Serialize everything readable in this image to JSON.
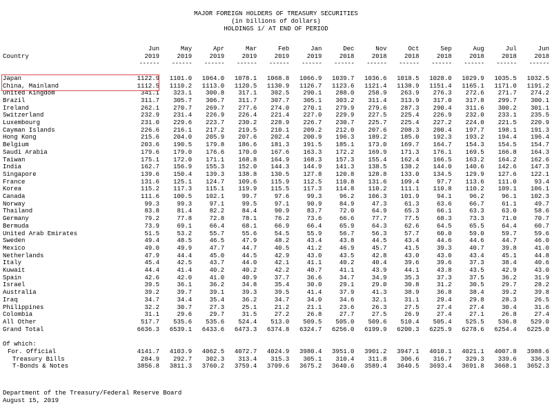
{
  "title": "MAJOR FOREIGN HOLDERS OF TREASURY SECURITIES",
  "subtitle": "(in billions of dollars)",
  "subtitle2": "HOLDINGS 1/ AT END OF PERIOD",
  "country_header": "Country",
  "dash": "------",
  "months": [
    {
      "m": "Jun",
      "y": "2019"
    },
    {
      "m": "May",
      "y": "2019"
    },
    {
      "m": "Apr",
      "y": "2019"
    },
    {
      "m": "Mar",
      "y": "2019"
    },
    {
      "m": "Feb",
      "y": "2019"
    },
    {
      "m": "Jan",
      "y": "2019"
    },
    {
      "m": "Dec",
      "y": "2018"
    },
    {
      "m": "Nov",
      "y": "2018"
    },
    {
      "m": "Oct",
      "y": "2018"
    },
    {
      "m": "Sep",
      "y": "2018"
    },
    {
      "m": "Aug",
      "y": "2018"
    },
    {
      "m": "Jul",
      "y": "2018"
    },
    {
      "m": "Jun",
      "y": "2018"
    }
  ],
  "rows": [
    {
      "name": "Japan",
      "v": [
        "1122.9",
        "1101.0",
        "1064.0",
        "1078.1",
        "1068.8",
        "1066.9",
        "1039.7",
        "1036.6",
        "1018.5",
        "1028.0",
        "1029.9",
        "1035.5",
        "1032.5"
      ]
    },
    {
      "name": "China, Mainland",
      "v": [
        "1112.5",
        "1110.2",
        "1113.0",
        "1120.5",
        "1130.9",
        "1126.7",
        "1123.6",
        "1121.4",
        "1138.9",
        "1151.4",
        "1165.1",
        "1171.0",
        "1191.2"
      ]
    },
    {
      "name": "United Kingdom",
      "v": [
        "341.1",
        "323.1",
        "300.8",
        "317.1",
        "302.5",
        "290.1",
        "288.0",
        "258.9",
        "263.9",
        "276.3",
        "272.6",
        "271.7",
        "274.2"
      ]
    },
    {
      "name": "Brazil",
      "v": [
        "311.7",
        "305.7",
        "306.7",
        "311.7",
        "307.7",
        "305.1",
        "303.2",
        "311.4",
        "313.9",
        "317.0",
        "317.8",
        "299.7",
        "300.1"
      ]
    },
    {
      "name": "Ireland",
      "v": [
        "262.1",
        "270.7",
        "269.7",
        "277.6",
        "274.0",
        "270.1",
        "279.9",
        "279.6",
        "287.3",
        "290.4",
        "311.6",
        "300.2",
        "301.1"
      ]
    },
    {
      "name": "Switzerland",
      "v": [
        "232.9",
        "231.4",
        "226.9",
        "226.4",
        "221.4",
        "227.0",
        "229.9",
        "227.5",
        "225.4",
        "226.9",
        "232.0",
        "233.1",
        "235.5"
      ]
    },
    {
      "name": "Luxembourg",
      "v": [
        "231.0",
        "229.6",
        "223.7",
        "230.2",
        "228.9",
        "226.7",
        "230.7",
        "225.7",
        "225.4",
        "227.2",
        "224.0",
        "221.5",
        "220.9"
      ]
    },
    {
      "name": "Cayman Islands",
      "v": [
        "226.6",
        "216.1",
        "217.2",
        "219.5",
        "210.1",
        "209.2",
        "212.0",
        "207.6",
        "208.3",
        "200.4",
        "197.7",
        "198.1",
        "191.3"
      ]
    },
    {
      "name": "Hong Kong",
      "v": [
        "215.6",
        "204.0",
        "205.9",
        "207.6",
        "202.4",
        "200.9",
        "196.3",
        "189.2",
        "185.0",
        "192.3",
        "193.2",
        "194.4",
        "196.4"
      ]
    },
    {
      "name": "Belgium",
      "v": [
        "203.6",
        "190.5",
        "179.8",
        "186.6",
        "181.3",
        "191.5",
        "185.1",
        "173.0",
        "169.7",
        "164.7",
        "154.3",
        "154.5",
        "154.7"
      ]
    },
    {
      "name": "Saudi Arabia",
      "v": [
        "179.6",
        "179.0",
        "176.6",
        "170.0",
        "167.6",
        "163.3",
        "172.2",
        "169.9",
        "171.3",
        "176.1",
        "169.5",
        "166.8",
        "164.3"
      ]
    },
    {
      "name": "Taiwan",
      "v": [
        "175.1",
        "172.0",
        "171.1",
        "168.8",
        "164.9",
        "168.3",
        "157.3",
        "155.4",
        "162.4",
        "166.5",
        "163.2",
        "164.2",
        "162.6"
      ]
    },
    {
      "name": "India",
      "v": [
        "162.7",
        "156.9",
        "155.3",
        "152.0",
        "144.3",
        "144.9",
        "141.3",
        "138.5",
        "138.2",
        "144.0",
        "140.6",
        "142.6",
        "147.3"
      ]
    },
    {
      "name": "Singapore",
      "v": [
        "139.6",
        "150.4",
        "139.3",
        "138.8",
        "130.5",
        "127.8",
        "120.8",
        "128.8",
        "133.0",
        "134.5",
        "129.9",
        "127.6",
        "122.1"
      ]
    },
    {
      "name": "France",
      "v": [
        "131.6",
        "125.1",
        "124.7",
        "109.6",
        "115.9",
        "112.5",
        "110.8",
        "131.6",
        "109.4",
        "97.7",
        "113.6",
        "111.0",
        "93.4"
      ]
    },
    {
      "name": "Korea",
      "v": [
        "115.2",
        "117.3",
        "115.1",
        "119.9",
        "115.5",
        "117.3",
        "114.8",
        "110.2",
        "111.1",
        "110.8",
        "110.2",
        "109.1",
        "106.1"
      ]
    },
    {
      "name": "Canada",
      "v": [
        "111.6",
        "100.5",
        "102.1",
        "99.7",
        "97.6",
        "99.3",
        "96.2",
        "106.3",
        "101.9",
        "94.1",
        "96.2",
        "96.1",
        "102.3"
      ]
    },
    {
      "name": "Norway",
      "v": [
        "99.3",
        "99.3",
        "97.1",
        "99.5",
        "97.1",
        "90.9",
        "84.9",
        "47.3",
        "61.3",
        "63.6",
        "66.7",
        "61.1",
        "49.7"
      ]
    },
    {
      "name": "Thailand",
      "v": [
        "83.8",
        "81.4",
        "82.2",
        "84.4",
        "90.9",
        "83.7",
        "72.0",
        "64.9",
        "65.3",
        "66.1",
        "63.3",
        "63.0",
        "58.6"
      ]
    },
    {
      "name": "Germany",
      "v": [
        "79.2",
        "77.8",
        "72.8",
        "78.1",
        "76.2",
        "73.6",
        "66.6",
        "77.7",
        "77.5",
        "68.3",
        "73.3",
        "71.0",
        "70.7"
      ]
    },
    {
      "name": "Bermuda",
      "v": [
        "73.9",
        "69.1",
        "66.4",
        "68.1",
        "66.9",
        "66.4",
        "65.9",
        "64.3",
        "62.6",
        "64.5",
        "65.5",
        "64.4",
        "60.7"
      ]
    },
    {
      "name": "United Arab Emirates",
      "v": [
        "51.5",
        "53.2",
        "55.7",
        "55.6",
        "54.5",
        "55.9",
        "56.7",
        "56.3",
        "57.7",
        "60.0",
        "59.0",
        "59.7",
        "59.6"
      ]
    },
    {
      "name": "Sweden",
      "v": [
        "49.4",
        "48.5",
        "46.5",
        "47.9",
        "48.2",
        "43.4",
        "43.8",
        "44.5",
        "43.4",
        "44.6",
        "44.6",
        "44.7",
        "46.0"
      ]
    },
    {
      "name": "Mexico",
      "v": [
        "49.0",
        "49.9",
        "47.7",
        "44.7",
        "40.5",
        "41.2",
        "46.9",
        "45.7",
        "41.5",
        "39.3",
        "40.7",
        "39.8",
        "41.0"
      ]
    },
    {
      "name": "Netherlands",
      "v": [
        "47.9",
        "44.4",
        "45.0",
        "44.5",
        "42.9",
        "43.0",
        "43.5",
        "42.8",
        "43.0",
        "43.0",
        "43.4",
        "45.1",
        "44.8"
      ]
    },
    {
      "name": "Italy",
      "v": [
        "45.4",
        "42.5",
        "43.7",
        "44.0",
        "42.1",
        "41.1",
        "40.2",
        "40.4",
        "39.6",
        "39.6",
        "37.3",
        "38.4",
        "40.6"
      ]
    },
    {
      "name": "Kuwait",
      "v": [
        "44.4",
        "41.4",
        "40.2",
        "40.2",
        "42.2",
        "40.7",
        "41.1",
        "43.9",
        "44.1",
        "43.8",
        "43.5",
        "42.9",
        "43.0"
      ]
    },
    {
      "name": "Spain",
      "v": [
        "42.6",
        "42.0",
        "41.0",
        "40.9",
        "37.7",
        "36.6",
        "34.7",
        "34.9",
        "35.3",
        "37.3",
        "37.5",
        "36.2",
        "31.9"
      ]
    },
    {
      "name": "Israel",
      "v": [
        "39.5",
        "36.1",
        "36.2",
        "34.8",
        "35.4",
        "30.0",
        "29.1",
        "29.0",
        "30.8",
        "31.2",
        "30.5",
        "29.7",
        "28.2"
      ]
    },
    {
      "name": "Australia",
      "v": [
        "39.2",
        "39.7",
        "39.1",
        "39.3",
        "39.5",
        "41.4",
        "37.9",
        "41.3",
        "38.9",
        "36.8",
        "38.4",
        "39.2",
        "39.8"
      ]
    },
    {
      "name": "Iraq",
      "v": [
        "34.7",
        "34.4",
        "35.4",
        "36.2",
        "34.7",
        "34.0",
        "34.6",
        "32.1",
        "31.1",
        "29.4",
        "29.8",
        "28.3",
        "26.5"
      ]
    },
    {
      "name": "Philippines",
      "v": [
        "32.2",
        "30.7",
        "27.3",
        "25.1",
        "21.2",
        "21.1",
        "23.6",
        "26.3",
        "27.5",
        "27.4",
        "27.4",
        "30.4",
        "31.6"
      ]
    },
    {
      "name": "Colombia",
      "v": [
        "31.1",
        "29.6",
        "29.7",
        "31.5",
        "27.2",
        "26.8",
        "27.7",
        "27.5",
        "26.9",
        "27.4",
        "27.1",
        "26.8",
        "27.4"
      ]
    },
    {
      "name": "All Other",
      "v": [
        "517.7",
        "535.6",
        "535.6",
        "524.4",
        "513.0",
        "509.5",
        "505.0",
        "509.6",
        "510.4",
        "505.4",
        "525.5",
        "536.8",
        "529.0"
      ]
    },
    {
      "name": "Grand Total",
      "v": [
        "6636.3",
        "6539.1",
        "6433.6",
        "6473.3",
        "6374.8",
        "6324.7",
        "6256.0",
        "6199.9",
        "6200.3",
        "6225.9",
        "6278.6",
        "6254.4",
        "6225.0"
      ]
    }
  ],
  "of_which_label": "Of which:",
  "sub_rows": [
    {
      "name": "For. Official",
      "level": 1,
      "v": [
        "4141.7",
        "4103.9",
        "4062.5",
        "4072.7",
        "4024.9",
        "3980.4",
        "3951.0",
        "3901.2",
        "3947.1",
        "4010.1",
        "4021.1",
        "4007.8",
        "3988.6"
      ]
    },
    {
      "name": "Treasury Bills",
      "level": 2,
      "v": [
        "284.9",
        "292.7",
        "302.3",
        "313.4",
        "315.3",
        "305.1",
        "310.4",
        "311.8",
        "306.6",
        "316.7",
        "329.3",
        "339.6",
        "336.3"
      ]
    },
    {
      "name": "T-Bonds & Notes",
      "level": 2,
      "v": [
        "3856.8",
        "3811.3",
        "3760.2",
        "3759.4",
        "3709.6",
        "3675.2",
        "3640.6",
        "3589.4",
        "3640.5",
        "3693.4",
        "3691.8",
        "3668.1",
        "3652.3"
      ]
    }
  ],
  "footer": {
    "dept": "Department of the Treasury/Federal Reserve Board",
    "date": "August 15, 2019"
  }
}
